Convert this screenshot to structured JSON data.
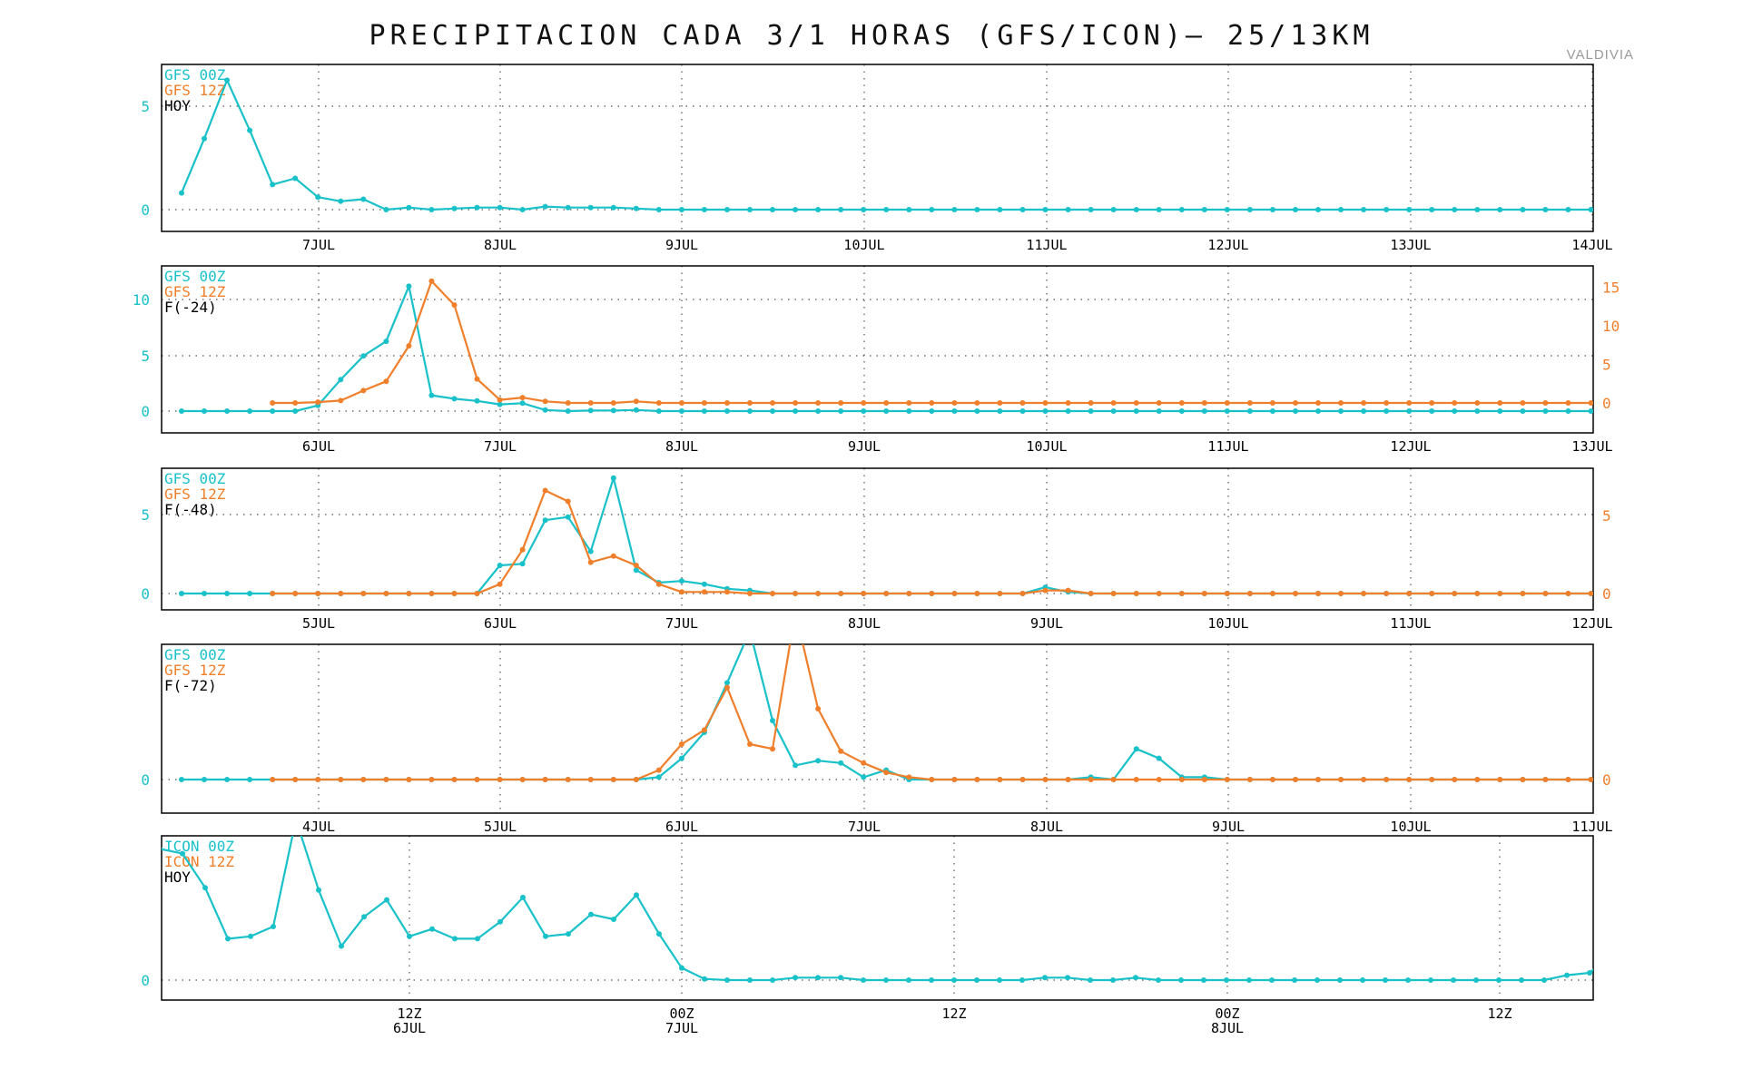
{
  "title": "PRECIPITACION CADA 3/1 HORAS (GFS/ICON)— 25/13KM",
  "location": "VALDIVIA",
  "colors": {
    "series_00z": "#19c1c9",
    "series_12z": "#f07f2b",
    "axis": "#000000",
    "grid": "#555555"
  },
  "chart_data": [
    {
      "type": "line",
      "legend": [
        "GFS 00Z",
        "GFS 12Z",
        "HOY"
      ],
      "xticks": [
        "7JUL",
        "8JUL",
        "9JUL",
        "10JUL",
        "11JUL",
        "12JUL",
        "13JUL",
        "14JUL"
      ],
      "yticks_left": [
        "0",
        "5"
      ],
      "yticks_right": [],
      "ylim": [
        -1,
        7.5
      ],
      "y2lim": null,
      "series": [
        {
          "x_start": 0,
          "values": [
            0.8,
            3.4,
            6.2,
            3.8,
            1.2,
            1.5,
            0.6,
            0.4,
            0.5,
            0.0,
            0.1,
            0.0,
            0.05,
            0.1,
            0.1,
            0.0,
            0.15,
            0.1,
            0.1,
            0.1,
            0.05,
            0.0,
            0.0,
            0.0,
            0.0,
            0.0,
            0.0,
            0.0,
            0.0,
            0.0,
            0.0,
            0.0,
            0.0,
            0.0,
            0.0,
            0.0,
            0.0,
            0.0,
            0.0,
            0.0,
            0.0,
            0.0,
            0.0,
            0.0,
            0.0,
            0.0,
            0.0,
            0.0,
            0.0,
            0.0,
            0.0,
            0.0,
            0.0,
            0.0,
            0.0,
            0.0,
            0.0,
            0.0,
            0.0,
            0.0,
            0.0,
            0.0,
            0.0,
            0.0
          ]
        }
      ]
    },
    {
      "type": "line",
      "legend": [
        "GFS 00Z",
        "GFS 12Z",
        "F(-24)"
      ],
      "xticks": [
        "6JUL",
        "7JUL",
        "8JUL",
        "9JUL",
        "10JUL",
        "11JUL",
        "12JUL",
        "13JUL"
      ],
      "yticks_left": [
        "0",
        "5",
        "10"
      ],
      "yticks_right": [
        "0",
        "5",
        "10",
        "15"
      ],
      "ylim": [
        -2,
        13
      ],
      "y2lim": [
        -3,
        19
      ],
      "series": [
        {
          "x_start": 0,
          "values": [
            0,
            0,
            0,
            0,
            0,
            0,
            0.5,
            2.8,
            4.9,
            6.2,
            11.1,
            1.4,
            1.1,
            0.9,
            0.6,
            0.7,
            0.1,
            0.0,
            0.05,
            0.05,
            0.1,
            0.0,
            0.0,
            0.0,
            0.0,
            0.0,
            0.0,
            0.0,
            0.0,
            0.0,
            0.0,
            0.0,
            0.0,
            0.0,
            0.0,
            0.0,
            0.0,
            0.0,
            0.0,
            0.0,
            0.0,
            0.0,
            0.0,
            0.0,
            0.0,
            0.0,
            0.0,
            0.0,
            0.0,
            0.0,
            0.0,
            0.0,
            0.0,
            0.0,
            0.0,
            0.0,
            0.0,
            0.0,
            0.0,
            0.0,
            0.0,
            0.0,
            0.0,
            0.0
          ]
        },
        {
          "x_start": 4,
          "values": [
            0.0,
            0.0,
            0.1,
            0.3,
            1.6,
            2.8,
            7.4,
            15.8,
            12.7,
            3.1,
            0.4,
            0.7,
            0.2,
            0.0,
            0.0,
            0.0,
            0.2,
            0.0,
            0.0,
            0.0,
            0.0,
            0.0,
            0.0,
            0.0,
            0.0,
            0.0,
            0.0,
            0.0,
            0.0,
            0.0,
            0.0,
            0.0,
            0.0,
            0.0,
            0.0,
            0.0,
            0.0,
            0.0,
            0.0,
            0.0,
            0.0,
            0.0,
            0.0,
            0.0,
            0.0,
            0.0,
            0.0,
            0.0,
            0.0,
            0.0,
            0.0,
            0.0,
            0.0,
            0.0,
            0.0,
            0.0,
            0.0,
            0.0,
            0.0,
            0.0
          ],
          "axis": "right"
        }
      ]
    },
    {
      "type": "line",
      "legend": [
        "GFS 00Z",
        "GFS 12Z",
        "F(-48)"
      ],
      "xticks": [
        "5JUL",
        "6JUL",
        "7JUL",
        "8JUL",
        "9JUL",
        "10JUL",
        "11JUL",
        "12JUL"
      ],
      "yticks_left": [
        "0",
        "5"
      ],
      "yticks_right": [
        "0",
        "5"
      ],
      "ylim": [
        -1,
        8
      ],
      "y2lim": [
        -1,
        8
      ],
      "series": [
        {
          "x_start": 0,
          "values": [
            0,
            0,
            0,
            0,
            0,
            0,
            0,
            0,
            0,
            0,
            0,
            0,
            0,
            0.0,
            1.8,
            1.9,
            4.7,
            4.9,
            2.7,
            7.4,
            1.5,
            0.7,
            0.8,
            0.6,
            0.3,
            0.2,
            0.0,
            0.0,
            0.0,
            0.0,
            0.0,
            0.0,
            0.0,
            0.0,
            0.0,
            0.0,
            0.0,
            0.0,
            0.4,
            0.1,
            0.0,
            0.0,
            0.0,
            0.0,
            0.0,
            0.0,
            0.0,
            0.0,
            0.0,
            0.0,
            0.0,
            0.0,
            0.0,
            0.0,
            0.0,
            0.0,
            0.0,
            0.0,
            0.0,
            0.0,
            0.0,
            0.0,
            0.0,
            0.0
          ]
        },
        {
          "x_start": 4,
          "values": [
            0,
            0,
            0,
            0,
            0,
            0,
            0,
            0,
            0,
            0,
            0.6,
            2.8,
            6.6,
            5.9,
            2.0,
            2.4,
            1.8,
            0.6,
            0.1,
            0.1,
            0.1,
            0.0,
            0.0,
            0.0,
            0.0,
            0.0,
            0.0,
            0.0,
            0.0,
            0.0,
            0.0,
            0.0,
            0.0,
            0.0,
            0.2,
            0.2,
            0.0,
            0.0,
            0.0,
            0.0,
            0.0,
            0.0,
            0.0,
            0.0,
            0.0,
            0.0,
            0.0,
            0.0,
            0.0,
            0.0,
            0.0,
            0.0,
            0.0,
            0.0,
            0.0,
            0.0,
            0.0,
            0.0,
            0.0,
            0.0
          ],
          "axis": "right"
        }
      ]
    },
    {
      "type": "line",
      "legend": [
        "GFS 00Z",
        "GFS 12Z",
        "F(-72)"
      ],
      "xticks": [
        "4JUL",
        "5JUL",
        "6JUL",
        "7JUL",
        "8JUL",
        "9JUL",
        "10JUL",
        "11JUL"
      ],
      "yticks_left": [
        "0"
      ],
      "yticks_right": [
        "0"
      ],
      "ylim": [
        -1,
        7
      ],
      "y2lim": [
        -1,
        7
      ],
      "series": [
        {
          "x_start": 0,
          "values": [
            0,
            0,
            0,
            0,
            0,
            0,
            0,
            0,
            0,
            0,
            0,
            0,
            0,
            0,
            0,
            0,
            0,
            0,
            0,
            0,
            0,
            0.1,
            0.9,
            2.0,
            4.1,
            6.3,
            2.5,
            0.6,
            0.8,
            0.7,
            0.1,
            0.4,
            0.0,
            0.0,
            0.0,
            0.0,
            0.0,
            0.0,
            0.0,
            0.0,
            0.1,
            0.0,
            1.3,
            0.9,
            0.1,
            0.1,
            0.0,
            0.0,
            0.0,
            0.0,
            0.0,
            0.0,
            0.0,
            0.0,
            0.0,
            0.0,
            0.0,
            0.0,
            0.0,
            0.0,
            0.0,
            0.0,
            0.0,
            0.0
          ]
        },
        {
          "x_start": 4,
          "values": [
            0,
            0,
            0,
            0,
            0,
            0,
            0,
            0,
            0,
            0,
            0,
            0,
            0,
            0,
            0,
            0,
            0,
            0.4,
            1.5,
            2.1,
            3.9,
            1.5,
            1.3,
            7.1,
            3.0,
            1.2,
            0.7,
            0.3,
            0.1,
            0.0,
            0.0,
            0.0,
            0.0,
            0.0,
            0.0,
            0.0,
            0.0,
            0.0,
            0.0,
            0.0,
            0.0,
            0.0,
            0.0,
            0.0,
            0.0,
            0.0,
            0.0,
            0.0,
            0.0,
            0.0,
            0.0,
            0.0,
            0.0,
            0.0,
            0.0,
            0.0,
            0.0,
            0.0,
            0.0,
            0.0
          ],
          "axis": "right"
        }
      ]
    },
    {
      "type": "line",
      "legend": [
        "ICON 00Z",
        "ICON 12Z",
        "HOY"
      ],
      "xticks": [
        "12Z\n6JUL",
        "00Z\n7JUL",
        "12Z",
        "00Z\n8JUL",
        "12Z"
      ],
      "yticks_left": [
        "0"
      ],
      "yticks_right": [],
      "ylim": [
        -1,
        7
      ],
      "y2lim": null,
      "series": [
        {
          "x_start": 0,
          "values": [
            5.4,
            5.2,
            3.8,
            1.7,
            1.8,
            2.2,
            6.6,
            3.7,
            1.4,
            2.6,
            3.3,
            1.8,
            2.1,
            1.7,
            1.7,
            2.4,
            3.4,
            1.8,
            1.9,
            2.7,
            2.5,
            3.5,
            1.9,
            0.5,
            0.05,
            0.0,
            0.0,
            0.0,
            0.1,
            0.1,
            0.1,
            0.0,
            0.0,
            0.0,
            0.0,
            0.0,
            0.0,
            0.0,
            0.0,
            0.1,
            0.1,
            0.0,
            0.0,
            0.1,
            0.0,
            0.0,
            0.0,
            0.0,
            0.0,
            0.0,
            0.0,
            0.0,
            0.0,
            0.0,
            0.0,
            0.0,
            0.0,
            0.0,
            0.0,
            0.0,
            0.0,
            0.0,
            0.2,
            0.3,
            1.1,
            1.1,
            0.1,
            0.0,
            0.0,
            0.0,
            0.0,
            0.0,
            0.0,
            0.0,
            0.0,
            0.0,
            0.0,
            0.0,
            0.0
          ]
        }
      ]
    }
  ]
}
